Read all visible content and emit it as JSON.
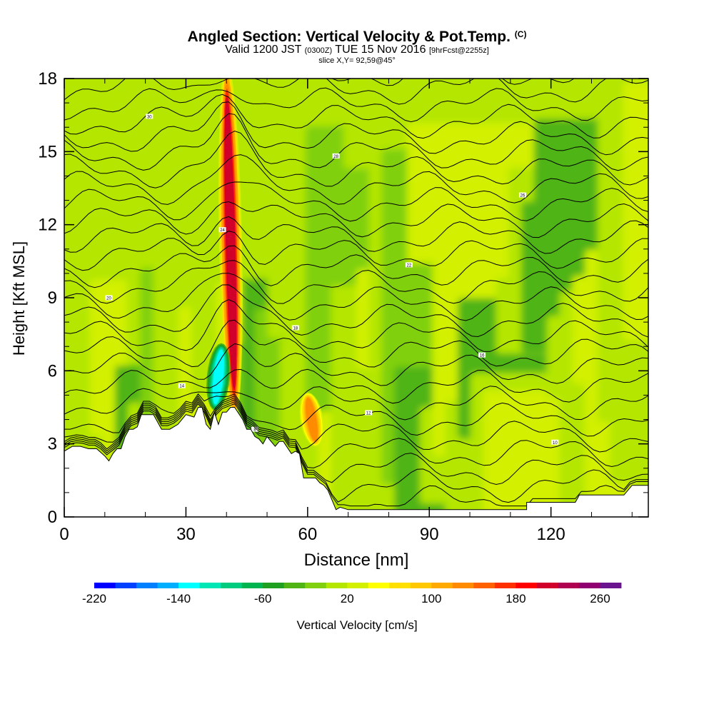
{
  "title": {
    "main": "Angled Section: Vertical Velocity & Pot.Temp.",
    "main_suffix": "(C)",
    "valid_prefix": "Valid 1200 JST",
    "valid_utc": "(0300Z)",
    "valid_date": "TUE 15 Nov 2016",
    "valid_fcst": "[9hrFcst@2255z]",
    "slice": "slice X,Y= 92,59@45°"
  },
  "chart_data": {
    "type": "heatmap",
    "xlabel": "Distance [nm]",
    "ylabel": "Height [Kft MSL]",
    "xlim": [
      0,
      144
    ],
    "ylim": [
      0,
      18
    ],
    "xticks": [
      "0",
      "30",
      "60",
      "90",
      "120"
    ],
    "xtick_values": [
      0,
      30,
      60,
      90,
      120
    ],
    "yticks": [
      "0",
      "3",
      "6",
      "9",
      "12",
      "15",
      "18"
    ],
    "ytick_values": [
      0,
      3,
      6,
      9,
      12,
      15,
      18
    ],
    "colorbar": {
      "label": "Vertical Velocity [cm/s]",
      "min": -220,
      "max": 280,
      "step": 20,
      "tick_labels": [
        "-220",
        "-140",
        "-60",
        "20",
        "100",
        "180",
        "260"
      ],
      "tick_values": [
        -220,
        -140,
        -60,
        20,
        100,
        180,
        260
      ],
      "colors": [
        "#0000ff",
        "#0040ff",
        "#0080ff",
        "#00b0ff",
        "#00ffff",
        "#00e6b4",
        "#00cc80",
        "#00b450",
        "#20a020",
        "#50b414",
        "#80d010",
        "#b4e600",
        "#d2f000",
        "#ffff00",
        "#ffe000",
        "#ffc800",
        "#ffaa00",
        "#ff8c00",
        "#ff6000",
        "#ff3000",
        "#ff0000",
        "#d0002a",
        "#b00050",
        "#900070",
        "#6a1490"
      ]
    },
    "terrain_kft": [
      [
        0,
        2.7
      ],
      [
        2,
        2.9
      ],
      [
        4,
        2.9
      ],
      [
        6,
        2.8
      ],
      [
        8,
        2.8
      ],
      [
        10,
        2.5
      ],
      [
        11,
        2.3
      ],
      [
        12,
        2.6
      ],
      [
        13,
        2.8
      ],
      [
        14,
        2.8
      ],
      [
        15,
        3.3
      ],
      [
        16,
        3.6
      ],
      [
        17,
        3.6
      ],
      [
        18,
        3.7
      ],
      [
        19,
        4.2
      ],
      [
        20,
        4.2
      ],
      [
        22,
        4.2
      ],
      [
        24,
        3.6
      ],
      [
        26,
        3.6
      ],
      [
        28,
        3.8
      ],
      [
        30,
        4.2
      ],
      [
        32,
        4.1
      ],
      [
        33,
        4.5
      ],
      [
        34,
        4.5
      ],
      [
        35,
        3.8
      ],
      [
        36,
        3.6
      ],
      [
        37,
        4.3
      ],
      [
        38,
        3.8
      ],
      [
        39,
        4.3
      ],
      [
        40,
        4.3
      ],
      [
        41,
        4.5
      ],
      [
        42,
        4.5
      ],
      [
        44,
        4.0
      ],
      [
        45,
        3.6
      ],
      [
        46,
        3.6
      ],
      [
        47,
        3.3
      ],
      [
        48,
        3.2
      ],
      [
        49,
        3.0
      ],
      [
        50,
        3.3
      ],
      [
        51,
        3.1
      ],
      [
        52,
        2.9
      ],
      [
        53,
        3.1
      ],
      [
        54,
        3.1
      ],
      [
        56,
        2.6
      ],
      [
        57,
        2.7
      ],
      [
        58,
        2.6
      ],
      [
        59,
        1.6
      ],
      [
        60,
        1.6
      ],
      [
        61,
        1.6
      ],
      [
        62,
        1.6
      ],
      [
        63,
        1.4
      ],
      [
        64,
        1.3
      ],
      [
        65,
        1.1
      ],
      [
        66,
        0.7
      ],
      [
        67,
        0.3
      ],
      [
        68,
        0.4
      ],
      [
        70,
        0.3
      ],
      [
        80,
        0.3
      ],
      [
        90,
        0.3
      ],
      [
        100,
        0.3
      ],
      [
        110,
        0.3
      ],
      [
        114,
        0.3
      ],
      [
        114,
        0.6
      ],
      [
        126,
        0.6
      ],
      [
        127,
        0.9
      ],
      [
        138,
        0.9
      ],
      [
        140,
        1.3
      ],
      [
        144,
        1.3
      ]
    ],
    "series": [
      {
        "name": "updraft core",
        "peak_cm_s": 200,
        "x_range": [
          39,
          43
        ],
        "z_range": [
          4.5,
          18
        ]
      },
      {
        "name": "downdraft core",
        "peak_cm_s": -140,
        "x_range": [
          36,
          40
        ],
        "z_range": [
          4.5,
          7
        ]
      },
      {
        "name": "lee updraft",
        "peak_cm_s": 120,
        "x_range": [
          59,
          63
        ],
        "z_range": [
          3,
          5
        ]
      }
    ],
    "theta_contours_c": [
      7,
      8,
      9,
      10,
      11,
      12,
      13,
      14,
      15,
      16,
      17,
      18,
      19,
      20,
      21,
      22,
      23,
      24,
      25,
      26,
      27,
      28,
      29,
      30,
      31,
      32,
      33
    ],
    "contour_labels": [
      "8",
      "10",
      "12",
      "14",
      "16",
      "18",
      "20",
      "22",
      "24",
      "26",
      "28",
      "30"
    ]
  }
}
